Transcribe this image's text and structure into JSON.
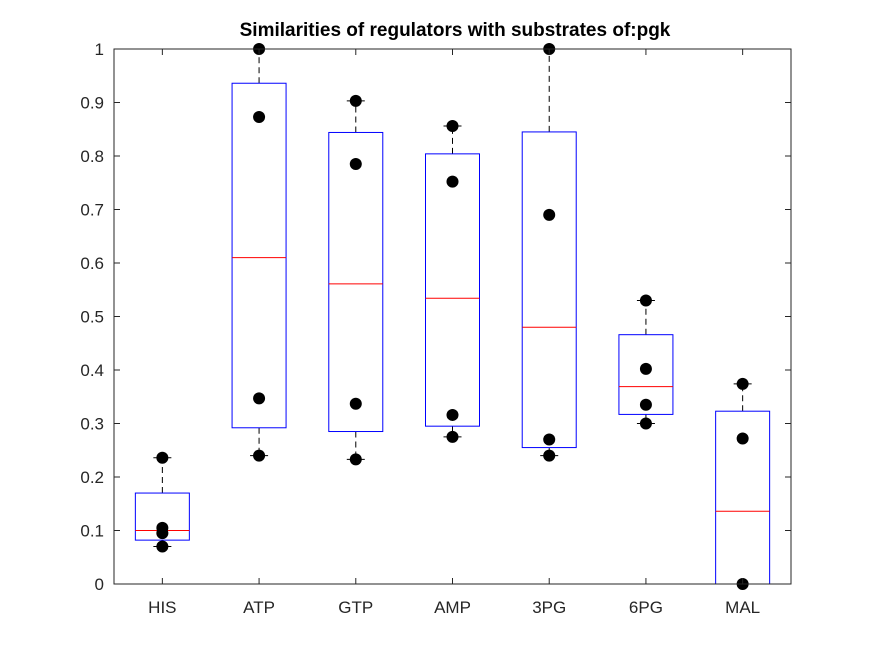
{
  "chart_data": {
    "type": "box",
    "title": "Similarities of regulators with substrates of:pgk",
    "xlabel": "",
    "ylabel": "",
    "ylim": [
      0,
      1
    ],
    "yticks": [
      0,
      0.1,
      0.2,
      0.3,
      0.4,
      0.5,
      0.6,
      0.7,
      0.8,
      0.9,
      1
    ],
    "ytick_labels": [
      "0",
      "0.1",
      "0.2",
      "0.3",
      "0.4",
      "0.5",
      "0.6",
      "0.7",
      "0.8",
      "0.9",
      "1"
    ],
    "categories": [
      "HIS",
      "ATP",
      "GTP",
      "AMP",
      "3PG",
      "6PG",
      "MAL"
    ],
    "boxes": [
      {
        "label": "HIS",
        "whisker_low": 0.07,
        "q1": 0.082,
        "median": 0.1,
        "q3": 0.17,
        "whisker_high": 0.236,
        "points": [
          0.236,
          0.105,
          0.095,
          0.07
        ]
      },
      {
        "label": "ATP",
        "whisker_low": 0.24,
        "q1": 0.292,
        "median": 0.61,
        "q3": 0.936,
        "whisker_high": 1.0,
        "points": [
          1.0,
          0.873,
          0.347,
          0.24
        ]
      },
      {
        "label": "GTP",
        "whisker_low": 0.233,
        "q1": 0.285,
        "median": 0.561,
        "q3": 0.844,
        "whisker_high": 0.903,
        "points": [
          0.903,
          0.785,
          0.337,
          0.233
        ]
      },
      {
        "label": "AMP",
        "whisker_low": 0.275,
        "q1": 0.295,
        "median": 0.534,
        "q3": 0.804,
        "whisker_high": 0.856,
        "points": [
          0.856,
          0.752,
          0.316,
          0.275
        ]
      },
      {
        "label": "3PG",
        "whisker_low": 0.24,
        "q1": 0.255,
        "median": 0.48,
        "q3": 0.845,
        "whisker_high": 1.0,
        "points": [
          1.0,
          0.69,
          0.27,
          0.24
        ]
      },
      {
        "label": "6PG",
        "whisker_low": 0.3,
        "q1": 0.317,
        "median": 0.369,
        "q3": 0.466,
        "whisker_high": 0.53,
        "points": [
          0.53,
          0.402,
          0.335,
          0.3
        ]
      },
      {
        "label": "MAL",
        "whisker_low": 0.0,
        "q1": 0.0,
        "median": 0.136,
        "q3": 0.323,
        "whisker_high": 0.374,
        "points": [
          0.374,
          0.272,
          0.0
        ]
      }
    ],
    "grid": false,
    "legend": "none",
    "colors": {
      "box": "#0000ff",
      "median": "#ff0000",
      "whisker": "#000000",
      "point": "#000000",
      "axis": "#262626"
    }
  }
}
